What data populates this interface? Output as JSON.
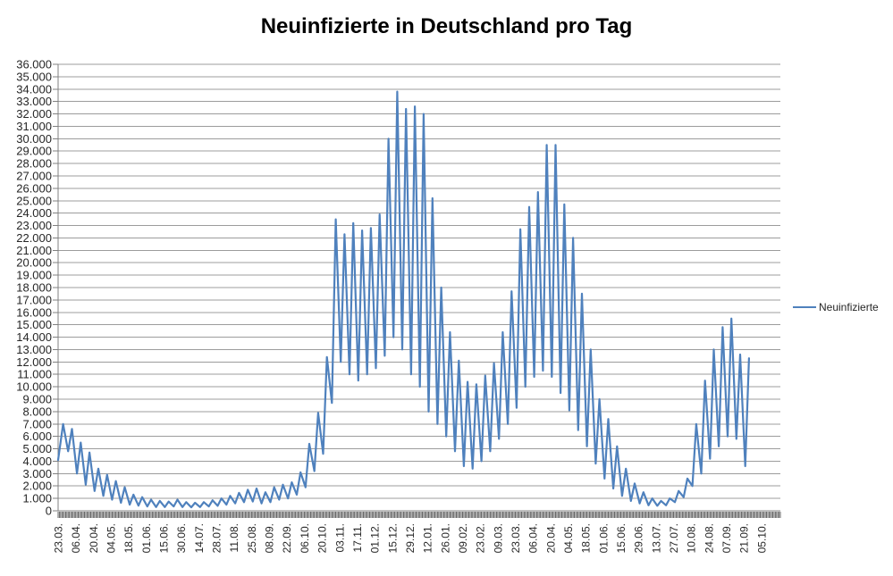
{
  "title": "Neuinfizierte in Deutschland pro Tag",
  "legend": {
    "label": "Neuinfizierte",
    "line_color": "#4f81bd"
  },
  "colors": {
    "series_line": "#4f81bd",
    "gridline": "#9c9c9c",
    "axis_line": "#808080",
    "tick_band": "#595959",
    "axis_label": "#262626",
    "title": "#000000",
    "background": "#ffffff"
  },
  "chart_data": {
    "type": "line",
    "title": "Neuinfizierte in Deutschland pro Tag",
    "xlabel": "",
    "ylabel": "",
    "grid": "horizontal",
    "legend_position": "right",
    "ylim": [
      0,
      36000
    ],
    "y_tick_step": 1000,
    "y_tick_labels": [
      "36.000",
      "35.000",
      "34.000",
      "33.000",
      "32.000",
      "31.000",
      "30.000",
      "29.000",
      "28.000",
      "27.000",
      "26.000",
      "25.000",
      "24.000",
      "23.000",
      "22.000",
      "21.000",
      "20.000",
      "19.000",
      "18.000",
      "17.000",
      "16.000",
      "15.000",
      "14.000",
      "13.000",
      "12.000",
      "11.000",
      "10.000",
      "9.000",
      "8.000",
      "7.000",
      "6.000",
      "5.000",
      "4.000",
      "3.000",
      "2.000",
      "1.000",
      "0"
    ],
    "x_domain_days": [
      0,
      575
    ],
    "x_tick_interval_days": 14,
    "x_start_date": "23.03.2020",
    "x_tick_labels": [
      "23.03.",
      "06.04.",
      "20.04.",
      "04.05.",
      "18.05.",
      "01.06.",
      "15.06.",
      "30.06.",
      "14.07.",
      "28.07.",
      "11.08.",
      "25.08.",
      "08.09.",
      "22.09.",
      "06.10.",
      "20.10.",
      "03.11.",
      "17.11.",
      "01.12.",
      "15.12.",
      "29.12.",
      "12.01.",
      "26.01.",
      "09.02.",
      "23.02.",
      "09.03.",
      "23.03.",
      "06.04.",
      "20.04.",
      "04.05.",
      "18.05.",
      "01.06.",
      "15.06.",
      "29.06.",
      "13.07.",
      "27.07.",
      "10.08.",
      "24.08.",
      "07.09.",
      "21.09.",
      "05.10."
    ],
    "series": [
      {
        "name": "Neuinfizierte",
        "color": "#4f81bd",
        "points": [
          [
            0,
            4100
          ],
          [
            4,
            7000
          ],
          [
            8,
            4800
          ],
          [
            11,
            6600
          ],
          [
            15,
            3000
          ],
          [
            18,
            5500
          ],
          [
            22,
            2100
          ],
          [
            25,
            4700
          ],
          [
            29,
            1600
          ],
          [
            32,
            3400
          ],
          [
            36,
            1200
          ],
          [
            39,
            2900
          ],
          [
            43,
            900
          ],
          [
            46,
            2400
          ],
          [
            50,
            650
          ],
          [
            53,
            1900
          ],
          [
            57,
            500
          ],
          [
            60,
            1300
          ],
          [
            64,
            420
          ],
          [
            67,
            1100
          ],
          [
            71,
            350
          ],
          [
            74,
            900
          ],
          [
            78,
            300
          ],
          [
            81,
            800
          ],
          [
            85,
            300
          ],
          [
            88,
            750
          ],
          [
            92,
            350
          ],
          [
            95,
            900
          ],
          [
            99,
            300
          ],
          [
            102,
            700
          ],
          [
            106,
            280
          ],
          [
            109,
            650
          ],
          [
            113,
            300
          ],
          [
            116,
            700
          ],
          [
            120,
            350
          ],
          [
            123,
            850
          ],
          [
            127,
            400
          ],
          [
            130,
            1000
          ],
          [
            134,
            500
          ],
          [
            137,
            1200
          ],
          [
            141,
            600
          ],
          [
            144,
            1450
          ],
          [
            148,
            700
          ],
          [
            151,
            1700
          ],
          [
            155,
            750
          ],
          [
            158,
            1800
          ],
          [
            162,
            600
          ],
          [
            165,
            1500
          ],
          [
            169,
            700
          ],
          [
            172,
            1900
          ],
          [
            176,
            900
          ],
          [
            179,
            2100
          ],
          [
            183,
            1000
          ],
          [
            186,
            2300
          ],
          [
            190,
            1300
          ],
          [
            193,
            3100
          ],
          [
            197,
            1900
          ],
          [
            200,
            5400
          ],
          [
            204,
            3200
          ],
          [
            207,
            7900
          ],
          [
            211,
            4600
          ],
          [
            214,
            12400
          ],
          [
            218,
            8700
          ],
          [
            221,
            23500
          ],
          [
            225,
            12000
          ],
          [
            228,
            22300
          ],
          [
            232,
            11000
          ],
          [
            235,
            23200
          ],
          [
            239,
            10500
          ],
          [
            242,
            22600
          ],
          [
            246,
            11000
          ],
          [
            249,
            22800
          ],
          [
            253,
            11500
          ],
          [
            256,
            23900
          ],
          [
            260,
            12500
          ],
          [
            263,
            30000
          ],
          [
            267,
            14000
          ],
          [
            270,
            33800
          ],
          [
            274,
            13000
          ],
          [
            277,
            32400
          ],
          [
            281,
            11000
          ],
          [
            284,
            32600
          ],
          [
            288,
            10000
          ],
          [
            291,
            32000
          ],
          [
            295,
            8000
          ],
          [
            298,
            25200
          ],
          [
            302,
            7000
          ],
          [
            305,
            18000
          ],
          [
            309,
            6000
          ],
          [
            312,
            14400
          ],
          [
            316,
            4800
          ],
          [
            319,
            12100
          ],
          [
            323,
            3600
          ],
          [
            326,
            10400
          ],
          [
            330,
            3400
          ],
          [
            333,
            10200
          ],
          [
            337,
            4000
          ],
          [
            340,
            10900
          ],
          [
            344,
            4800
          ],
          [
            347,
            11900
          ],
          [
            351,
            5800
          ],
          [
            354,
            14400
          ],
          [
            358,
            7000
          ],
          [
            361,
            17700
          ],
          [
            365,
            8300
          ],
          [
            368,
            22700
          ],
          [
            372,
            10000
          ],
          [
            375,
            24500
          ],
          [
            379,
            10800
          ],
          [
            382,
            25700
          ],
          [
            386,
            11300
          ],
          [
            389,
            29500
          ],
          [
            393,
            10800
          ],
          [
            396,
            29500
          ],
          [
            400,
            9500
          ],
          [
            403,
            24700
          ],
          [
            407,
            8100
          ],
          [
            410,
            22000
          ],
          [
            414,
            6500
          ],
          [
            417,
            17500
          ],
          [
            421,
            5200
          ],
          [
            424,
            13000
          ],
          [
            428,
            3800
          ],
          [
            431,
            9000
          ],
          [
            435,
            2600
          ],
          [
            438,
            7400
          ],
          [
            442,
            1800
          ],
          [
            445,
            5200
          ],
          [
            449,
            1200
          ],
          [
            452,
            3400
          ],
          [
            456,
            800
          ],
          [
            459,
            2200
          ],
          [
            463,
            600
          ],
          [
            466,
            1500
          ],
          [
            470,
            450
          ],
          [
            473,
            1000
          ],
          [
            477,
            400
          ],
          [
            480,
            800
          ],
          [
            484,
            450
          ],
          [
            487,
            1000
          ],
          [
            491,
            700
          ],
          [
            494,
            1600
          ],
          [
            498,
            1100
          ],
          [
            501,
            2600
          ],
          [
            505,
            2000
          ],
          [
            508,
            7000
          ],
          [
            512,
            3000
          ],
          [
            515,
            10500
          ],
          [
            519,
            4200
          ],
          [
            522,
            13000
          ],
          [
            526,
            5200
          ],
          [
            529,
            14800
          ],
          [
            533,
            6000
          ],
          [
            536,
            15500
          ],
          [
            540,
            5800
          ],
          [
            543,
            12600
          ],
          [
            547,
            3600
          ],
          [
            550,
            12300
          ]
        ]
      }
    ]
  }
}
